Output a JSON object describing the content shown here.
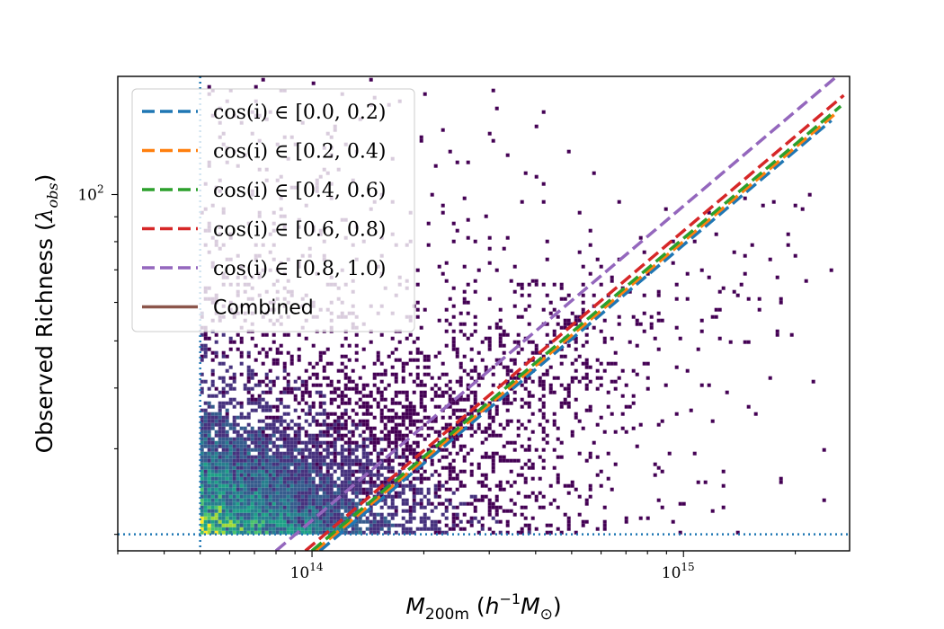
{
  "chart_data": {
    "type": "scatter",
    "title": "",
    "xlabel": "M_200m (h^-1 M_⊙)",
    "xlabel_parts": {
      "main": "M",
      "sub": "200m",
      "rest": " (h",
      "sup": "−1",
      "tail": "M",
      "tail_sub": "⊙",
      "close": ")"
    },
    "ylabel": "Observed Richness (λ_obs)",
    "ylabel_parts": {
      "main": "Observed Richness (",
      "sym": "λ",
      "sub": "obs",
      "close": ")"
    },
    "xscale": "log",
    "yscale": "log",
    "xlim": [
      30000000000000.0,
      2800000000000000.0
    ],
    "ylim": [
      18.5,
      175
    ],
    "x_ticks": [
      {
        "value": 100000000000000.0,
        "label": "10",
        "exp": "14"
      },
      {
        "value": 1000000000000000.0,
        "label": "10",
        "exp": "15"
      }
    ],
    "y_ticks": [
      {
        "value": 100,
        "label": "10",
        "exp": "2"
      }
    ],
    "cut_lines": {
      "x": 50000000000000.0,
      "y": 20,
      "style": "dotted",
      "color": "#1f77b4"
    },
    "density": {
      "description_peak_at": [
        55000000000000.0,
        20
      ],
      "colormap": "viridis"
    },
    "series": [
      {
        "name": "cos(i) ∈ [0.0, 0.2)",
        "color": "#1f77b4",
        "style": "dashed",
        "x": [
          105000000000000.0,
          2500000000000000.0
        ],
        "y": [
          18.5,
          142
        ]
      },
      {
        "name": "cos(i) ∈ [0.2, 0.4)",
        "color": "#ff7f0e",
        "style": "dashed",
        "x": [
          102000000000000.0,
          2600000000000000.0
        ],
        "y": [
          18.5,
          148
        ]
      },
      {
        "name": "cos(i) ∈ [0.4, 0.6)",
        "color": "#2ca02c",
        "style": "dashed",
        "x": [
          100000000000000.0,
          2650000000000000.0
        ],
        "y": [
          18.5,
          152
        ]
      },
      {
        "name": "cos(i) ∈ [0.6, 0.8)",
        "color": "#d62728",
        "style": "dashed",
        "x": [
          96000000000000.0,
          2700000000000000.0
        ],
        "y": [
          18.5,
          160
        ]
      },
      {
        "name": "cos(i) ∈ [0.8, 1.0)",
        "color": "#9467bd",
        "style": "dashed",
        "x": [
          80000000000000.0,
          2700000000000000.0
        ],
        "y": [
          18.5,
          180
        ]
      },
      {
        "name": "Combined",
        "color": "#8c564b",
        "style": "solid",
        "x": [],
        "y": []
      }
    ],
    "legend": {
      "placement": "upper-left"
    }
  }
}
